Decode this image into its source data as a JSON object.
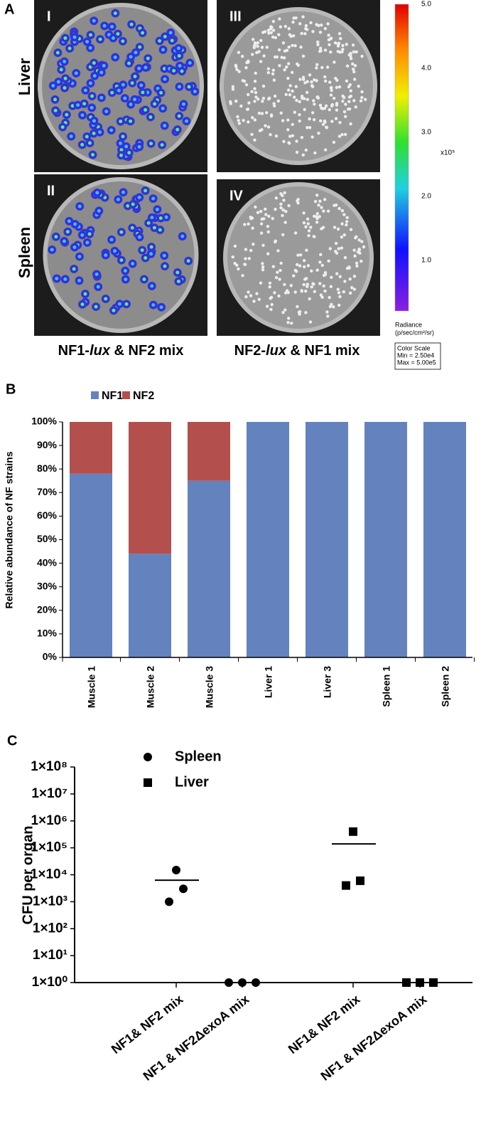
{
  "panel_labels": [
    "A",
    "B",
    "C"
  ],
  "panel_a": {
    "plates": [
      {
        "label": "I"
      },
      {
        "label": "III"
      },
      {
        "label": "II"
      },
      {
        "label": "IV"
      }
    ],
    "rows": [
      "Liver",
      "Spleen"
    ],
    "captions": [
      [
        "NF1-",
        "lux",
        " & NF2 mix"
      ],
      [
        "NF2-",
        "lux",
        " & NF1 mix"
      ]
    ],
    "colorbar": {
      "ticks": [
        "5.0",
        "4.0",
        "3.0",
        "2.0",
        "1.0"
      ],
      "unit": "x10⁵",
      "title": "Radiance",
      "units": "(p/sec/cm²/sr)",
      "scale_box": [
        "Color Scale",
        "Min = 2.50e4",
        "Max = 5.00e5"
      ]
    }
  },
  "chart_data": [
    {
      "type": "stacked_bar",
      "categories": [
        "Muscle 1",
        "Muscle 2",
        "Muscle 3",
        "Liver 1",
        "Liver 3",
        "Spleen 1",
        "Spleen 2"
      ],
      "series": [
        {
          "name": "NF1",
          "color": "#6482bd",
          "values": [
            78,
            44,
            75,
            100,
            100,
            100,
            100
          ]
        },
        {
          "name": "NF2",
          "color": "#b3504d",
          "values": [
            22,
            56,
            25,
            0,
            0,
            0,
            0
          ]
        }
      ],
      "ylabel": "Relative abundance of NF strains",
      "ylim": [
        0,
        100
      ],
      "yticks": [
        {
          "value": 0,
          "label": "0%"
        },
        {
          "value": 10,
          "label": "10%"
        },
        {
          "value": 20,
          "label": "20%"
        },
        {
          "value": 30,
          "label": "30%"
        },
        {
          "value": 40,
          "label": "40%"
        },
        {
          "value": 50,
          "label": "50%"
        },
        {
          "value": 60,
          "label": "60%"
        },
        {
          "value": 70,
          "label": "70%"
        },
        {
          "value": 80,
          "label": "80%"
        },
        {
          "value": 90,
          "label": "90%"
        },
        {
          "value": 100,
          "label": "100%"
        }
      ]
    },
    {
      "type": "scatter_groups",
      "categories": [
        "NF1& NF2 mix",
        "NF1 & NF2ΔexoA mix",
        "NF1& NF2 mix",
        "NF1 & NF2ΔexoA mix"
      ],
      "series": [
        {
          "name": "Spleen",
          "marker": "circle",
          "color": "#000000",
          "values": [
            [
              1000,
              15000,
              3000
            ],
            [
              1,
              1,
              1
            ],
            null,
            null
          ],
          "mean": [
            6300,
            1,
            null,
            null
          ]
        },
        {
          "name": "Liver",
          "marker": "square",
          "color": "#000000",
          "values": [
            null,
            null,
            [
              4000,
              400000,
              6000
            ],
            [
              1,
              1,
              1
            ]
          ],
          "mean": [
            null,
            null,
            140000,
            1
          ]
        }
      ],
      "ylabel": "CFU per organ",
      "log_scale": true,
      "ylim": [
        1,
        100000000
      ],
      "yticks": [
        {
          "value": 1,
          "label": "1×10⁰"
        },
        {
          "value": 10,
          "label": "1×10¹"
        },
        {
          "value": 100,
          "label": "1×10²"
        },
        {
          "value": 1000,
          "label": "1×10³"
        },
        {
          "value": 10000,
          "label": "1×10⁴"
        },
        {
          "value": 100000,
          "label": "1×10⁵"
        },
        {
          "value": 1000000,
          "label": "1×10⁶"
        },
        {
          "value": 10000000,
          "label": "1×10⁷"
        },
        {
          "value": 100000000,
          "label": "1×10⁸"
        }
      ]
    }
  ]
}
